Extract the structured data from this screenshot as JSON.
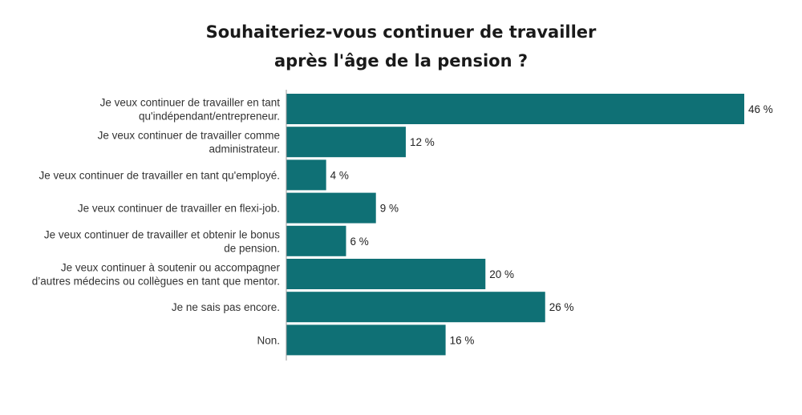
{
  "chart_data": {
    "type": "bar",
    "orientation": "horizontal",
    "title": "Souhaiteriez-vous continuer de travailler après l'âge de la pension ?",
    "title_lines": [
      "Souhaiteriez-vous continuer de travailler",
      "après l'âge de la pension ?"
    ],
    "categories": [
      [
        "Je veux continuer de travailler en tant",
        "qu'indépendant/entrepreneur."
      ],
      [
        "Je veux continuer de travailler comme",
        "administrateur."
      ],
      [
        "Je veux continuer de travailler en tant qu'employé."
      ],
      [
        "Je veux continuer de travailler en flexi-job."
      ],
      [
        "Je veux continuer de travailler et obtenir le bonus",
        "de pension."
      ],
      [
        "Je veux continuer à soutenir ou accompagner",
        "d’autres médecins ou collègues en tant que mentor."
      ],
      [
        "Je ne sais pas encore."
      ],
      [
        "Non."
      ]
    ],
    "values": [
      46,
      12,
      4,
      9,
      6,
      20,
      26,
      16
    ],
    "value_labels": [
      "46 %",
      "12 %",
      "4 %",
      "9 %",
      "6 %",
      "20 %",
      "26 %",
      "16 %"
    ],
    "xlim": [
      0,
      46
    ],
    "xlabel": "",
    "ylabel": "",
    "grid": false,
    "legend": "none",
    "bar_color": "#0f7075",
    "axis_color": "#999999"
  }
}
